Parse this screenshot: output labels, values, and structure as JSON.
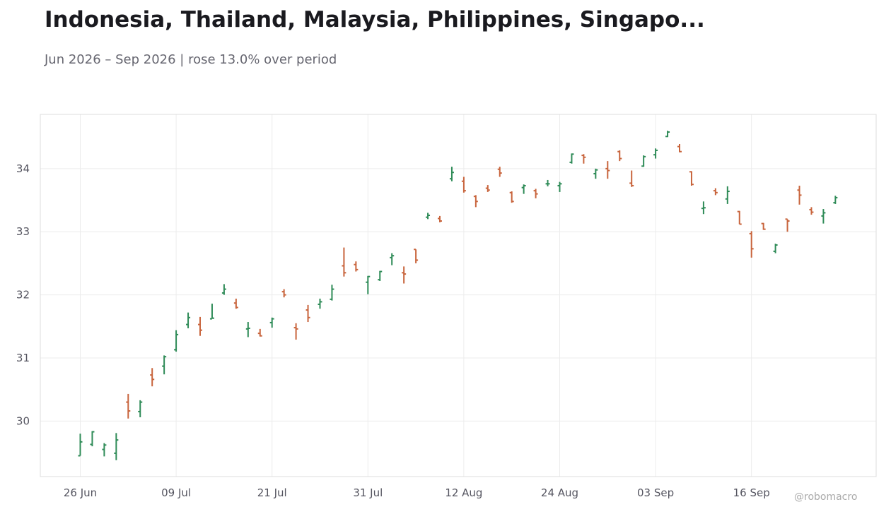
{
  "title": "Indonesia, Thailand, Malaysia, Philippines, Singapo...",
  "subtitle": "Jun 2026 – Sep 2026 | rose 13.0% over period",
  "credit": "@robomacro",
  "colors": {
    "up": "#2e8b57",
    "down": "#c8643c",
    "grid": "#ececec",
    "frame": "#dddddd"
  },
  "chart_data": {
    "type": "ohlc",
    "title": "Indonesia, Thailand, Malaysia, Philippines, Singapo...",
    "subtitle": "Jun 2026 – Sep 2026 | rose 13.0% over period",
    "xlabel": "",
    "ylabel": "",
    "ylim": [
      29.12,
      34.86
    ],
    "yticks": [
      30,
      31,
      32,
      33,
      34
    ],
    "xticks": [
      {
        "label": "26 Jun",
        "index": 0
      },
      {
        "label": "09 Jul",
        "index": 8
      },
      {
        "label": "21 Jul",
        "index": 16
      },
      {
        "label": "31 Jul",
        "index": 24
      },
      {
        "label": "12 Aug",
        "index": 32
      },
      {
        "label": "24 Aug",
        "index": 40
      },
      {
        "label": "03 Sep",
        "index": 48
      },
      {
        "label": "16 Sep",
        "index": 56
      }
    ],
    "grid": true,
    "candles": [
      {
        "o": 29.45,
        "h": 29.8,
        "l": 29.45,
        "c": 29.67
      },
      {
        "o": 29.63,
        "h": 29.84,
        "l": 29.6,
        "c": 29.83
      },
      {
        "o": 29.55,
        "h": 29.65,
        "l": 29.44,
        "c": 29.62
      },
      {
        "o": 29.49,
        "h": 29.81,
        "l": 29.38,
        "c": 29.7
      },
      {
        "o": 30.3,
        "h": 30.43,
        "l": 30.04,
        "c": 30.16
      },
      {
        "o": 30.15,
        "h": 30.33,
        "l": 30.06,
        "c": 30.3
      },
      {
        "o": 30.73,
        "h": 30.84,
        "l": 30.55,
        "c": 30.66
      },
      {
        "o": 30.87,
        "h": 31.04,
        "l": 30.74,
        "c": 31.02
      },
      {
        "o": 31.13,
        "h": 31.44,
        "l": 31.1,
        "c": 31.37
      },
      {
        "o": 31.53,
        "h": 31.72,
        "l": 31.47,
        "c": 31.64
      },
      {
        "o": 31.53,
        "h": 31.65,
        "l": 31.35,
        "c": 31.44
      },
      {
        "o": 31.62,
        "h": 31.86,
        "l": 31.62,
        "c": 31.63
      },
      {
        "o": 32.03,
        "h": 32.17,
        "l": 32.0,
        "c": 32.09
      },
      {
        "o": 31.87,
        "h": 31.94,
        "l": 31.78,
        "c": 31.8
      },
      {
        "o": 31.46,
        "h": 31.57,
        "l": 31.33,
        "c": 31.47
      },
      {
        "o": 31.39,
        "h": 31.46,
        "l": 31.34,
        "c": 31.35
      },
      {
        "o": 31.56,
        "h": 31.64,
        "l": 31.48,
        "c": 31.62
      },
      {
        "o": 32.05,
        "h": 32.09,
        "l": 31.96,
        "c": 32.0
      },
      {
        "o": 31.48,
        "h": 31.55,
        "l": 31.29,
        "c": 31.46
      },
      {
        "o": 31.76,
        "h": 31.84,
        "l": 31.57,
        "c": 31.64
      },
      {
        "o": 31.85,
        "h": 31.94,
        "l": 31.78,
        "c": 31.89
      },
      {
        "o": 31.93,
        "h": 32.16,
        "l": 31.91,
        "c": 32.09
      },
      {
        "o": 32.46,
        "h": 32.75,
        "l": 32.29,
        "c": 32.35
      },
      {
        "o": 32.48,
        "h": 32.53,
        "l": 32.37,
        "c": 32.4
      },
      {
        "o": 32.2,
        "h": 32.3,
        "l": 32.01,
        "c": 32.29
      },
      {
        "o": 32.24,
        "h": 32.38,
        "l": 32.22,
        "c": 32.37
      },
      {
        "o": 32.59,
        "h": 32.66,
        "l": 32.47,
        "c": 32.62
      },
      {
        "o": 32.35,
        "h": 32.45,
        "l": 32.18,
        "c": 32.33
      },
      {
        "o": 32.72,
        "h": 32.72,
        "l": 32.5,
        "c": 32.55
      },
      {
        "o": 33.23,
        "h": 33.3,
        "l": 33.2,
        "c": 33.26
      },
      {
        "o": 33.21,
        "h": 33.25,
        "l": 33.15,
        "c": 33.17
      },
      {
        "o": 33.84,
        "h": 34.03,
        "l": 33.8,
        "c": 33.94
      },
      {
        "o": 33.8,
        "h": 33.87,
        "l": 33.62,
        "c": 33.65
      },
      {
        "o": 33.56,
        "h": 33.58,
        "l": 33.39,
        "c": 33.48
      },
      {
        "o": 33.69,
        "h": 33.74,
        "l": 33.63,
        "c": 33.66
      },
      {
        "o": 33.99,
        "h": 34.03,
        "l": 33.87,
        "c": 33.93
      },
      {
        "o": 33.62,
        "h": 33.64,
        "l": 33.46,
        "c": 33.48
      },
      {
        "o": 33.7,
        "h": 33.75,
        "l": 33.6,
        "c": 33.73
      },
      {
        "o": 33.65,
        "h": 33.68,
        "l": 33.53,
        "c": 33.6
      },
      {
        "o": 33.76,
        "h": 33.82,
        "l": 33.72,
        "c": 33.76
      },
      {
        "o": 33.73,
        "h": 33.79,
        "l": 33.63,
        "c": 33.76
      },
      {
        "o": 34.1,
        "h": 34.24,
        "l": 34.08,
        "c": 34.23
      },
      {
        "o": 34.21,
        "h": 34.23,
        "l": 34.08,
        "c": 34.18
      },
      {
        "o": 33.92,
        "h": 34.0,
        "l": 33.84,
        "c": 33.98
      },
      {
        "o": 34.0,
        "h": 34.12,
        "l": 33.84,
        "c": 33.97
      },
      {
        "o": 34.27,
        "h": 34.29,
        "l": 34.12,
        "c": 34.16
      },
      {
        "o": 33.77,
        "h": 33.97,
        "l": 33.71,
        "c": 33.73
      },
      {
        "o": 34.04,
        "h": 34.21,
        "l": 34.03,
        "c": 34.19
      },
      {
        "o": 34.22,
        "h": 34.32,
        "l": 34.16,
        "c": 34.29
      },
      {
        "o": 34.51,
        "h": 34.6,
        "l": 34.5,
        "c": 34.58
      },
      {
        "o": 34.35,
        "h": 34.39,
        "l": 34.26,
        "c": 34.27
      },
      {
        "o": 33.95,
        "h": 33.96,
        "l": 33.73,
        "c": 33.75
      },
      {
        "o": 33.37,
        "h": 33.48,
        "l": 33.28,
        "c": 33.38
      },
      {
        "o": 33.65,
        "h": 33.69,
        "l": 33.58,
        "c": 33.62
      },
      {
        "o": 33.52,
        "h": 33.72,
        "l": 33.44,
        "c": 33.64
      },
      {
        "o": 33.32,
        "h": 33.33,
        "l": 33.12,
        "c": 33.12
      },
      {
        "o": 32.97,
        "h": 33.01,
        "l": 32.59,
        "c": 32.73
      },
      {
        "o": 33.13,
        "h": 33.14,
        "l": 33.03,
        "c": 33.04
      },
      {
        "o": 32.69,
        "h": 32.81,
        "l": 32.66,
        "c": 32.79
      },
      {
        "o": 33.2,
        "h": 33.2,
        "l": 33.0,
        "c": 33.17
      },
      {
        "o": 33.66,
        "h": 33.73,
        "l": 33.43,
        "c": 33.58
      },
      {
        "o": 33.35,
        "h": 33.39,
        "l": 33.27,
        "c": 33.31
      },
      {
        "o": 33.25,
        "h": 33.36,
        "l": 33.13,
        "c": 33.3
      },
      {
        "o": 33.46,
        "h": 33.57,
        "l": 33.44,
        "c": 33.54
      }
    ]
  }
}
